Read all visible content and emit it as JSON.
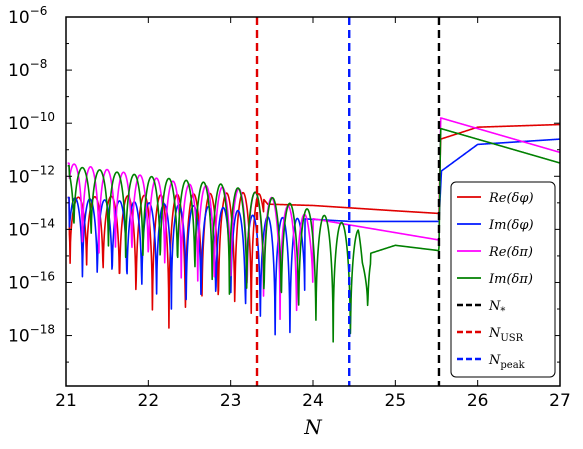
{
  "chart_data": {
    "type": "line",
    "title": "",
    "xlabel": "N",
    "ylabel": "",
    "xlim": [
      21,
      27
    ],
    "ylim": [
      -19.9,
      -6
    ],
    "y_scale": "log",
    "x_ticks": [
      21,
      22,
      23,
      24,
      25,
      26,
      27
    ],
    "y_ticks": [
      {
        "exp": -18,
        "label": "10",
        "sup": "−18"
      },
      {
        "exp": -16,
        "label": "10",
        "sup": "−16"
      },
      {
        "exp": -14,
        "label": "10",
        "sup": "−14"
      },
      {
        "exp": -12,
        "label": "10",
        "sup": "−12"
      },
      {
        "exp": -10,
        "label": "10",
        "sup": "−10"
      },
      {
        "exp": -8,
        "label": "10",
        "sup": "−8"
      },
      {
        "exp": -6,
        "label": "10",
        "sup": "−6"
      }
    ],
    "grid": false,
    "legend_position": "right",
    "series": [
      {
        "name": "Re(δφ)",
        "color": "#e00000",
        "peak_env": [
          [
            21.02,
            -12.8
          ],
          [
            23.33,
            -12.6
          ],
          [
            23.45,
            -13.05
          ],
          [
            24.0,
            -13.1
          ],
          [
            25.0,
            -13.3
          ],
          [
            25.53,
            -13.4
          ],
          [
            25.55,
            -10.6
          ],
          [
            26.0,
            -10.15
          ],
          [
            27.0,
            -10.05
          ]
        ],
        "trough_env": [
          [
            21.02,
            -15.5
          ],
          [
            21.5,
            -16.5
          ],
          [
            22.2,
            -18.5
          ],
          [
            22.6,
            -18.0
          ],
          [
            23.36,
            -18.0
          ],
          [
            23.5,
            -15.0
          ]
        ],
        "osc_from": 21.04,
        "osc_to": 23.4,
        "osc_period": 0.2,
        "osc_phase": 0.15
      },
      {
        "name": "Im(δφ)",
        "color": "#0018ff",
        "peak_env": [
          [
            21.02,
            -12.8
          ],
          [
            23.0,
            -13.2
          ],
          [
            23.3,
            -13.5
          ],
          [
            24.45,
            -13.7
          ],
          [
            25.53,
            -13.7
          ],
          [
            25.56,
            -11.8
          ],
          [
            26.0,
            -10.8
          ],
          [
            27.0,
            -10.6
          ]
        ],
        "trough_env": [
          [
            21.02,
            -16.5
          ],
          [
            21.6,
            -16.6
          ],
          [
            22.0,
            -17.3
          ],
          [
            22.95,
            -17.7
          ],
          [
            23.75,
            -18.9
          ],
          [
            24.0,
            -16.0
          ]
        ],
        "osc_from": 21.04,
        "osc_to": 23.9,
        "osc_period": 0.18,
        "osc_phase": 0.05
      },
      {
        "name": "Re(δπ)",
        "color": "#ff00ff",
        "peak_env": [
          [
            21.02,
            -11.5
          ],
          [
            21.8,
            -11.9
          ],
          [
            22.5,
            -12.3
          ],
          [
            23.2,
            -12.5
          ],
          [
            23.5,
            -12.8
          ],
          [
            24.0,
            -13.6
          ],
          [
            25.53,
            -14.4
          ],
          [
            25.55,
            -9.8
          ],
          [
            27.0,
            -11.1
          ]
        ],
        "trough_env": [
          [
            21.02,
            -15.0
          ],
          [
            21.6,
            -15.5
          ],
          [
            22.4,
            -16.5
          ],
          [
            22.9,
            -17.0
          ],
          [
            23.95,
            -18.2
          ],
          [
            24.1,
            -15.0
          ]
        ],
        "osc_from": 21.04,
        "osc_to": 24.0,
        "osc_period": 0.2,
        "osc_phase": 0.3
      },
      {
        "name": "Im(δπ)",
        "color": "#008000",
        "peak_env": [
          [
            21.02,
            -11.6
          ],
          [
            22.0,
            -12.0
          ],
          [
            22.9,
            -12.3
          ],
          [
            23.3,
            -12.6
          ],
          [
            24.0,
            -13.3
          ],
          [
            24.55,
            -14.0
          ],
          [
            24.6,
            -15.0
          ],
          [
            25.0,
            -14.6
          ],
          [
            25.53,
            -14.8
          ],
          [
            25.55,
            -10.2
          ],
          [
            27.0,
            -11.5
          ]
        ],
        "trough_env": [
          [
            21.02,
            -14.5
          ],
          [
            21.9,
            -15.8
          ],
          [
            22.6,
            -16.5
          ],
          [
            23.25,
            -17.3
          ],
          [
            24.6,
            -19.2
          ],
          [
            24.75,
            -15.3
          ]
        ],
        "osc_from": 21.04,
        "osc_to": 24.7,
        "osc_period": 0.21,
        "osc_phase": 0.2
      },
      {
        "name": "N*",
        "color": "#000000"
      },
      {
        "name": "NUSR",
        "color": "#e00000"
      },
      {
        "name": "Npeak",
        "color": "#0018ff"
      }
    ],
    "vlines": [
      {
        "x": 23.32,
        "color": "#e00000",
        "label": "N_USR"
      },
      {
        "x": 24.44,
        "color": "#0018ff",
        "label": "N_peak"
      },
      {
        "x": 25.53,
        "color": "#000000",
        "label": "N_*"
      }
    ],
    "legend": [
      {
        "label": "Re(δφ)",
        "color": "#e00000",
        "dashed": false,
        "sub": ""
      },
      {
        "label": "Im(δφ)",
        "color": "#0018ff",
        "dashed": false,
        "sub": ""
      },
      {
        "label": "Re(δπ)",
        "color": "#ff00ff",
        "dashed": false,
        "sub": ""
      },
      {
        "label": "Im(δπ)",
        "color": "#008000",
        "dashed": false,
        "sub": ""
      },
      {
        "label": "N",
        "color": "#000000",
        "dashed": true,
        "sub": "*"
      },
      {
        "label": "N",
        "color": "#e00000",
        "dashed": true,
        "sub": "USR"
      },
      {
        "label": "N",
        "color": "#0018ff",
        "dashed": true,
        "sub": "peak"
      }
    ]
  }
}
